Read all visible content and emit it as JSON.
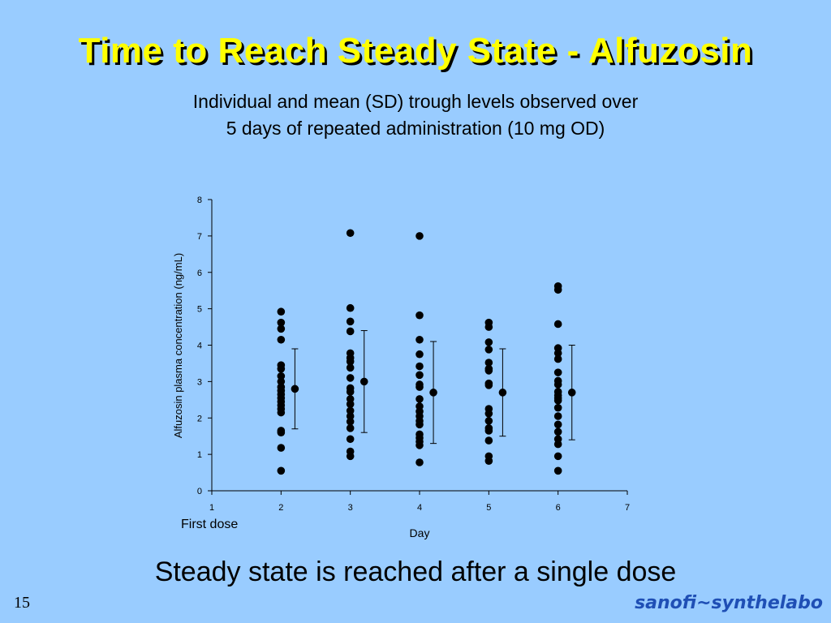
{
  "title": "Time to Reach Steady State - Alfuzosin",
  "subtitle_line1": "Individual and mean (SD) trough levels observed over",
  "subtitle_line2": "5 days of repeated administration (10 mg OD)",
  "conclusion": "Steady state is reached after a single dose",
  "slide_number": "15",
  "logo": "sanofi~synthelabo",
  "chart_data": {
    "type": "scatter",
    "title": "",
    "xlabel": "Day",
    "ylabel": "Alfuzosin plasma concentration (ng/mL)",
    "xlim": [
      1,
      7
    ],
    "ylim": [
      0,
      8
    ],
    "xticks": [
      1,
      2,
      3,
      4,
      5,
      6,
      7
    ],
    "yticks": [
      0,
      1,
      2,
      3,
      4,
      5,
      6,
      7,
      8
    ],
    "x_annotation": "First dose",
    "grid": false,
    "individual": [
      {
        "day": 2,
        "values": [
          4.92,
          4.62,
          4.45,
          4.15,
          3.45,
          3.35,
          3.15,
          3.0,
          2.85,
          2.75,
          2.65,
          2.55,
          2.45,
          2.35,
          2.25,
          2.15,
          1.65,
          1.6,
          1.18,
          0.55
        ]
      },
      {
        "day": 3,
        "values": [
          7.08,
          5.02,
          4.65,
          4.38,
          3.78,
          3.65,
          3.55,
          3.38,
          3.1,
          2.82,
          2.72,
          2.52,
          2.38,
          2.2,
          2.05,
          1.9,
          1.72,
          1.42,
          1.08,
          0.95
        ]
      },
      {
        "day": 4,
        "values": [
          7.0,
          4.82,
          4.15,
          3.75,
          3.42,
          3.18,
          2.92,
          2.85,
          2.52,
          2.32,
          2.18,
          2.05,
          1.92,
          1.82,
          1.55,
          1.45,
          1.35,
          1.25,
          0.78
        ]
      },
      {
        "day": 5,
        "values": [
          4.62,
          4.5,
          4.08,
          3.88,
          3.52,
          3.35,
          3.3,
          2.95,
          2.9,
          2.25,
          2.12,
          1.92,
          1.72,
          1.65,
          1.38,
          0.95,
          0.82
        ]
      },
      {
        "day": 6,
        "values": [
          5.62,
          5.52,
          4.58,
          3.92,
          3.78,
          3.62,
          3.25,
          3.02,
          2.92,
          2.72,
          2.62,
          2.55,
          2.48,
          2.28,
          2.05,
          1.82,
          1.62,
          1.42,
          1.28,
          0.95,
          0.55
        ]
      }
    ],
    "mean_sd": [
      {
        "day": 2,
        "mean": 2.8,
        "low": 1.7,
        "high": 3.9
      },
      {
        "day": 3,
        "mean": 3.0,
        "low": 1.6,
        "high": 4.4
      },
      {
        "day": 4,
        "mean": 2.7,
        "low": 1.3,
        "high": 4.1
      },
      {
        "day": 5,
        "mean": 2.7,
        "low": 1.5,
        "high": 3.9
      },
      {
        "day": 6,
        "mean": 2.7,
        "low": 1.4,
        "high": 4.0
      }
    ],
    "mean_offset_days": 0.2
  }
}
